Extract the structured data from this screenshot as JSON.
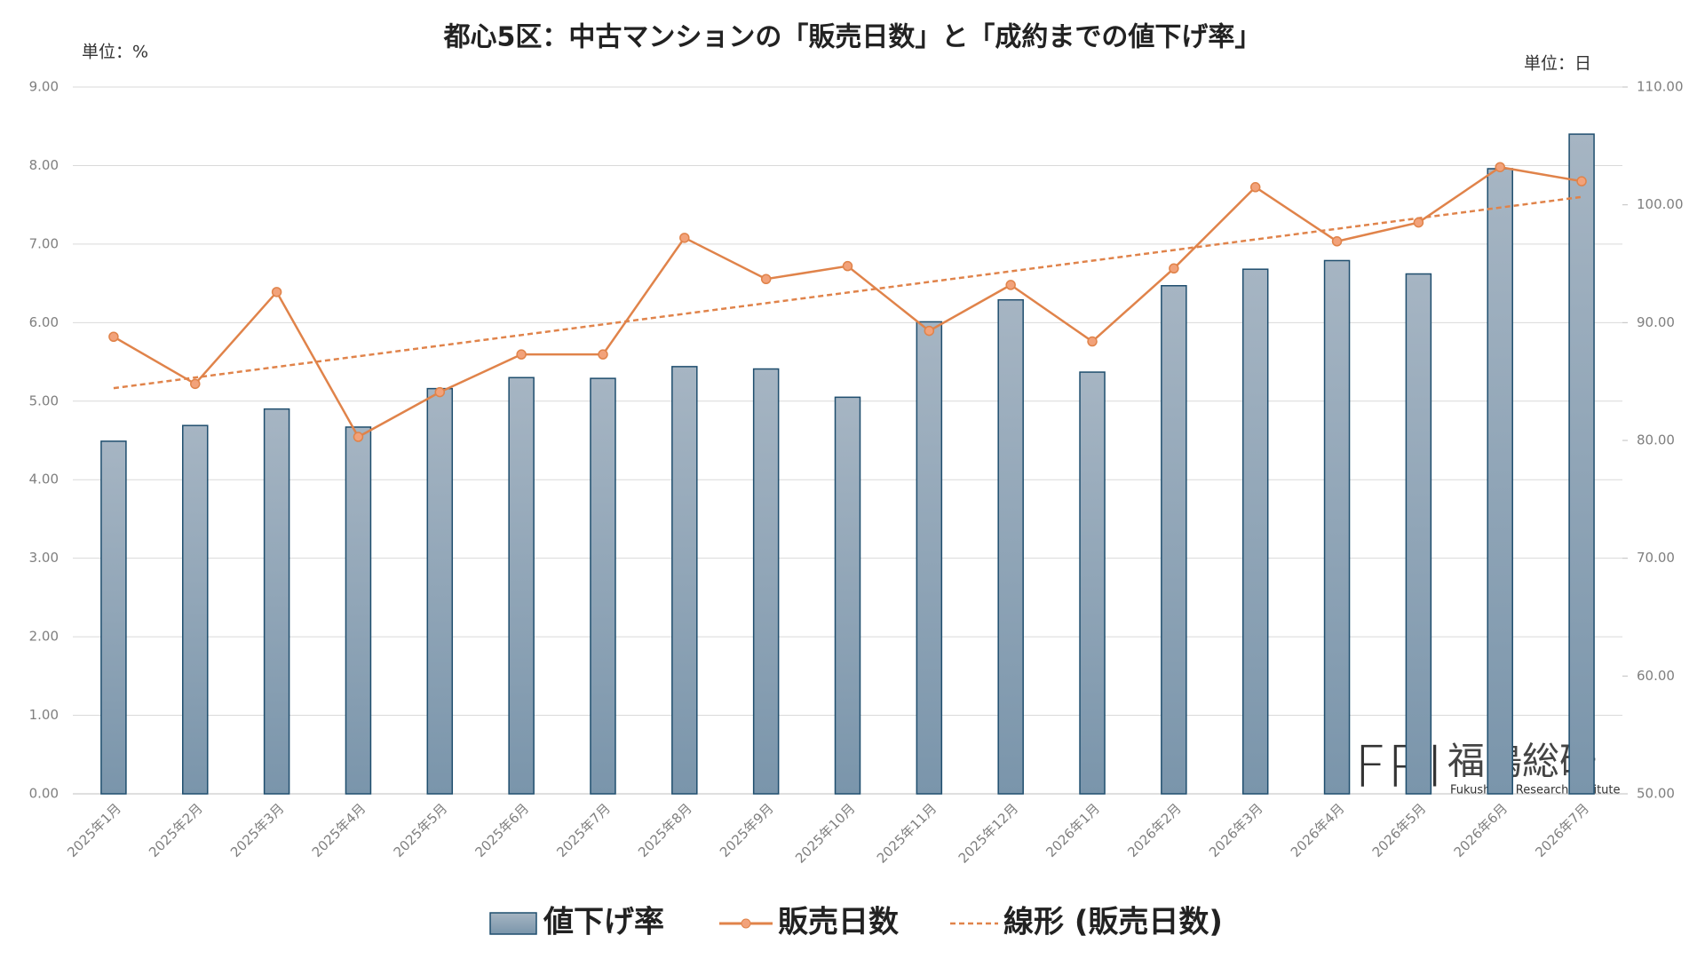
{
  "chart_data": {
    "type": "bar_line",
    "title": "都心5区：中古マンションの「販売日数」と「成約までの値下げ率」",
    "y_unit": "単位：%",
    "y2_unit": "単位：日",
    "categories": [
      "2025年1月",
      "2025年2月",
      "2025年3月",
      "2025年4月",
      "2025年5月",
      "2025年6月",
      "2025年7月",
      "2025年8月",
      "2025年9月",
      "2025年10月",
      "2025年11月",
      "2025年12月",
      "2026年1月",
      "2026年2月",
      "2026年3月",
      "2026年4月",
      "2026年5月",
      "2026年6月",
      "2026年7月"
    ],
    "series": [
      {
        "name": "値下げ率",
        "type": "bar",
        "color": "#8fa5b8",
        "values": [
          4.49,
          4.69,
          4.9,
          4.67,
          5.16,
          5.3,
          5.29,
          5.44,
          5.41,
          5.05,
          6.01,
          6.29,
          5.37,
          6.47,
          6.68,
          6.79,
          6.62,
          7.96,
          8.4
        ]
      },
      {
        "name": "販売日数",
        "type": "line",
        "axis": "y2",
        "color": "#e0834a",
        "values": [
          88.8,
          84.8,
          92.6,
          80.3,
          84.1,
          87.3,
          87.3,
          97.2,
          93.7,
          94.8,
          89.3,
          93.2,
          88.4,
          94.6,
          101.5,
          96.9,
          98.5,
          103.2,
          102.0
        ]
      }
    ],
    "trendline_name": "線形 (販売日数)",
    "ylim": [
      0,
      9
    ],
    "yticks": [
      {
        "value": 0,
        "label": "0.00"
      },
      {
        "value": 1,
        "label": "1.00"
      },
      {
        "value": 2,
        "label": "2.00"
      },
      {
        "value": 3,
        "label": "3.00"
      },
      {
        "value": 4,
        "label": "4.00"
      },
      {
        "value": 5,
        "label": "5.00"
      },
      {
        "value": 6,
        "label": "6.00"
      },
      {
        "value": 7,
        "label": "7.00"
      },
      {
        "value": 8,
        "label": "8.00"
      },
      {
        "value": 9,
        "label": "9.00"
      }
    ],
    "y2lim": [
      50,
      110
    ],
    "y2ticks": [
      {
        "value": 50,
        "label": "50.00"
      },
      {
        "value": 60,
        "label": "60.00"
      },
      {
        "value": 70,
        "label": "70.00"
      },
      {
        "value": 80,
        "label": "80.00"
      },
      {
        "value": 90,
        "label": "90.00"
      },
      {
        "value": 100,
        "label": "100.00"
      },
      {
        "value": 110,
        "label": "110.00"
      }
    ],
    "grid": true,
    "legend": "bottom",
    "watermark": {
      "logo": "FRI",
      "name": "福嶋総研",
      "subtitle": "Fukushima Research Institute"
    }
  }
}
